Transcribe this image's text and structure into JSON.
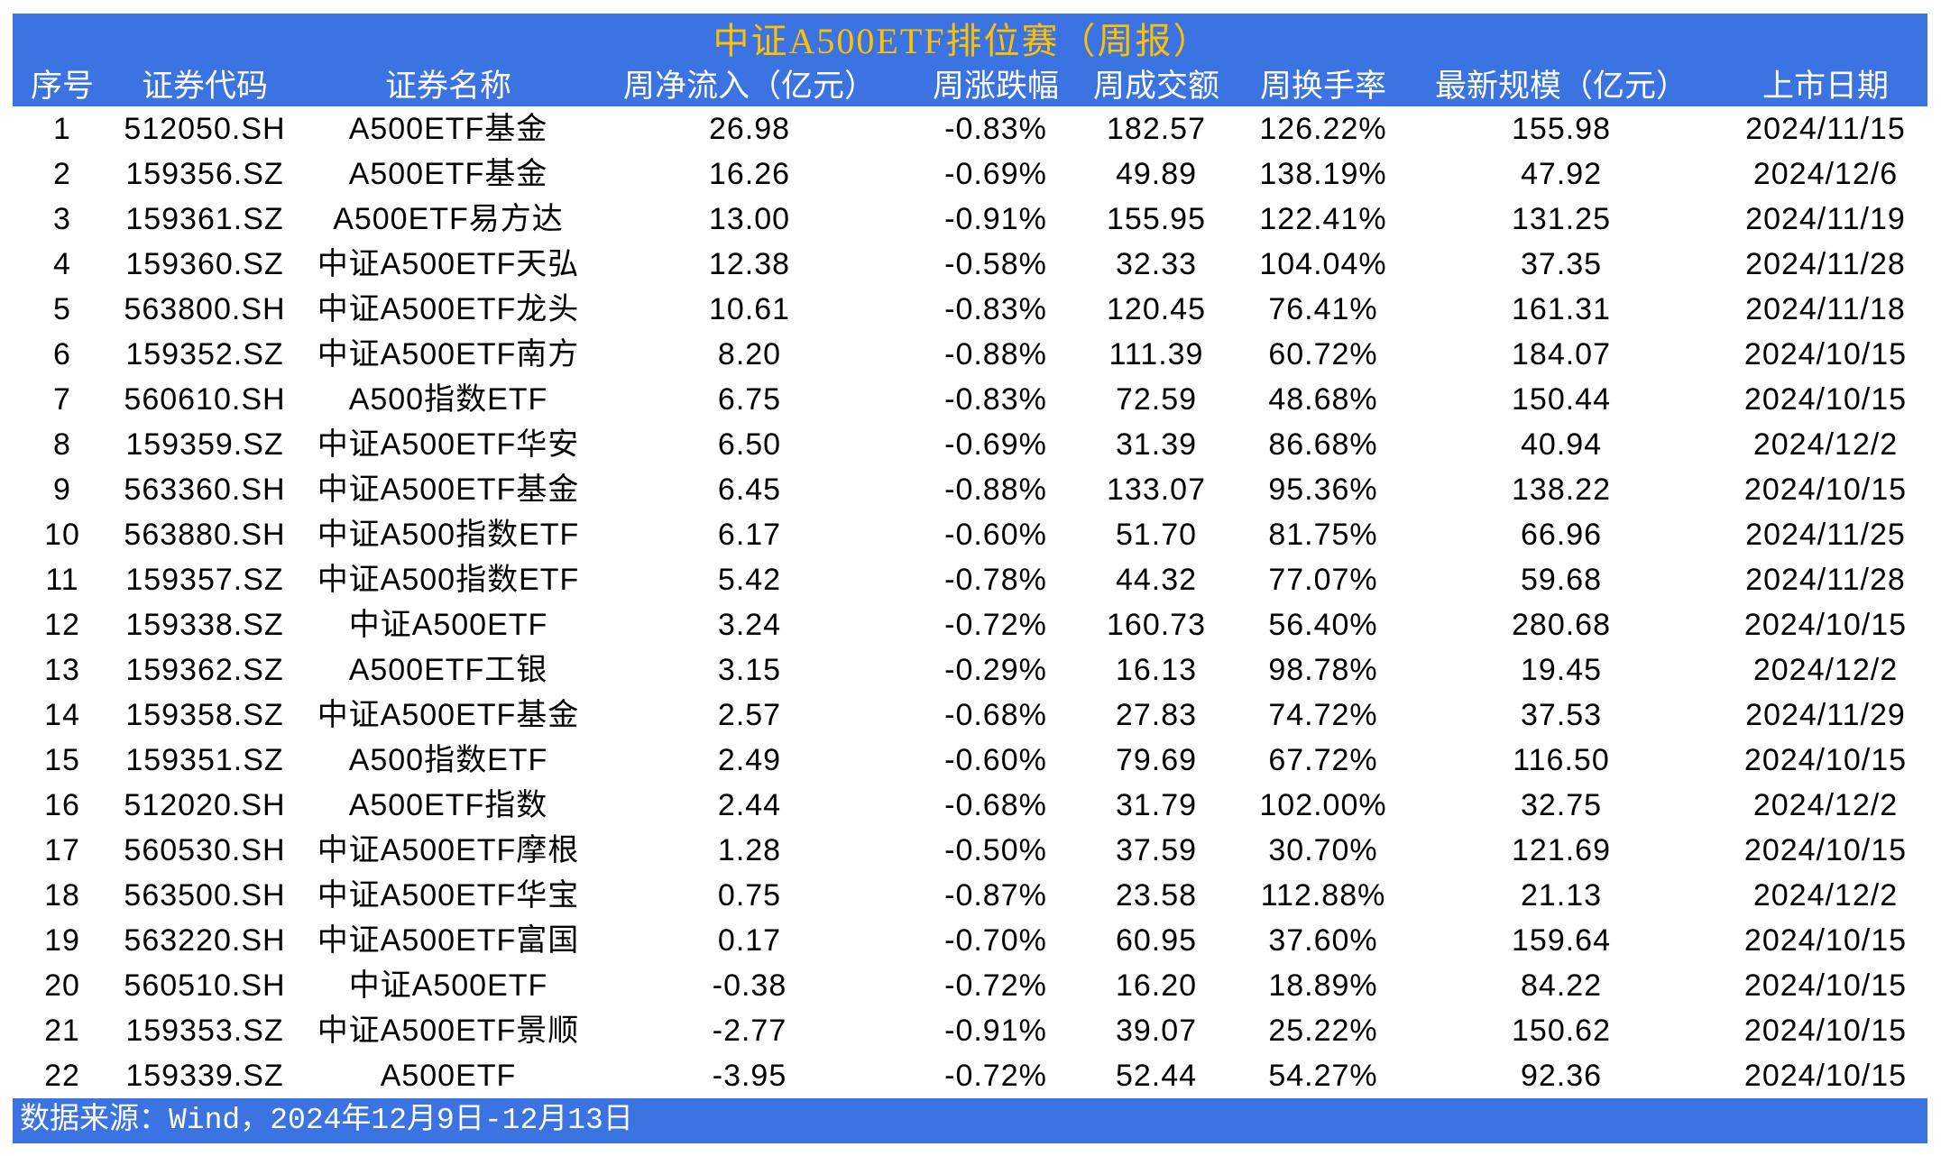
{
  "colors": {
    "header_bg": "#3B73E3",
    "title": "#FFC000",
    "header_text": "#FFFFFF",
    "body_text": "#000000"
  },
  "chart_data": {
    "type": "table",
    "title": "中证A500ETF排位赛（周报）",
    "columns": [
      "序号",
      "证券代码",
      "证券名称",
      "周净流入（亿元）",
      "周涨跌幅",
      "周成交额",
      "周换手率",
      "最新规模（亿元）",
      "上市日期"
    ],
    "rows": [
      [
        "1",
        "512050.SH",
        "A500ETF基金",
        "26.98",
        "-0.83%",
        "182.57",
        "126.22%",
        "155.98",
        "2024/11/15"
      ],
      [
        "2",
        "159356.SZ",
        "A500ETF基金",
        "16.26",
        "-0.69%",
        "49.89",
        "138.19%",
        "47.92",
        "2024/12/6"
      ],
      [
        "3",
        "159361.SZ",
        "A500ETF易方达",
        "13.00",
        "-0.91%",
        "155.95",
        "122.41%",
        "131.25",
        "2024/11/19"
      ],
      [
        "4",
        "159360.SZ",
        "中证A500ETF天弘",
        "12.38",
        "-0.58%",
        "32.33",
        "104.04%",
        "37.35",
        "2024/11/28"
      ],
      [
        "5",
        "563800.SH",
        "中证A500ETF龙头",
        "10.61",
        "-0.83%",
        "120.45",
        "76.41%",
        "161.31",
        "2024/11/18"
      ],
      [
        "6",
        "159352.SZ",
        "中证A500ETF南方",
        "8.20",
        "-0.88%",
        "111.39",
        "60.72%",
        "184.07",
        "2024/10/15"
      ],
      [
        "7",
        "560610.SH",
        "A500指数ETF",
        "6.75",
        "-0.83%",
        "72.59",
        "48.68%",
        "150.44",
        "2024/10/15"
      ],
      [
        "8",
        "159359.SZ",
        "中证A500ETF华安",
        "6.50",
        "-0.69%",
        "31.39",
        "86.68%",
        "40.94",
        "2024/12/2"
      ],
      [
        "9",
        "563360.SH",
        "中证A500ETF基金",
        "6.45",
        "-0.88%",
        "133.07",
        "95.36%",
        "138.22",
        "2024/10/15"
      ],
      [
        "10",
        "563880.SH",
        "中证A500指数ETF",
        "6.17",
        "-0.60%",
        "51.70",
        "81.75%",
        "66.96",
        "2024/11/25"
      ],
      [
        "11",
        "159357.SZ",
        "中证A500指数ETF",
        "5.42",
        "-0.78%",
        "44.32",
        "77.07%",
        "59.68",
        "2024/11/28"
      ],
      [
        "12",
        "159338.SZ",
        "中证A500ETF",
        "3.24",
        "-0.72%",
        "160.73",
        "56.40%",
        "280.68",
        "2024/10/15"
      ],
      [
        "13",
        "159362.SZ",
        "A500ETF工银",
        "3.15",
        "-0.29%",
        "16.13",
        "98.78%",
        "19.45",
        "2024/12/2"
      ],
      [
        "14",
        "159358.SZ",
        "中证A500ETF基金",
        "2.57",
        "-0.68%",
        "27.83",
        "74.72%",
        "37.53",
        "2024/11/29"
      ],
      [
        "15",
        "159351.SZ",
        "A500指数ETF",
        "2.49",
        "-0.60%",
        "79.69",
        "67.72%",
        "116.50",
        "2024/10/15"
      ],
      [
        "16",
        "512020.SH",
        "A500ETF指数",
        "2.44",
        "-0.68%",
        "31.79",
        "102.00%",
        "32.75",
        "2024/12/2"
      ],
      [
        "17",
        "560530.SH",
        "中证A500ETF摩根",
        "1.28",
        "-0.50%",
        "37.59",
        "30.70%",
        "121.69",
        "2024/10/15"
      ],
      [
        "18",
        "563500.SH",
        "中证A500ETF华宝",
        "0.75",
        "-0.87%",
        "23.58",
        "112.88%",
        "21.13",
        "2024/12/2"
      ],
      [
        "19",
        "563220.SH",
        "中证A500ETF富国",
        "0.17",
        "-0.70%",
        "60.95",
        "37.60%",
        "159.64",
        "2024/10/15"
      ],
      [
        "20",
        "560510.SH",
        "中证A500ETF",
        "-0.38",
        "-0.72%",
        "16.20",
        "18.89%",
        "84.22",
        "2024/10/15"
      ],
      [
        "21",
        "159353.SZ",
        "中证A500ETF景顺",
        "-2.77",
        "-0.91%",
        "39.07",
        "25.22%",
        "150.62",
        "2024/10/15"
      ],
      [
        "22",
        "159339.SZ",
        "A500ETF",
        "-3.95",
        "-0.72%",
        "52.44",
        "54.27%",
        "92.36",
        "2024/10/15"
      ]
    ]
  },
  "footer": {
    "source": "数据来源：Wind，2024年12月9日-12月13日"
  }
}
